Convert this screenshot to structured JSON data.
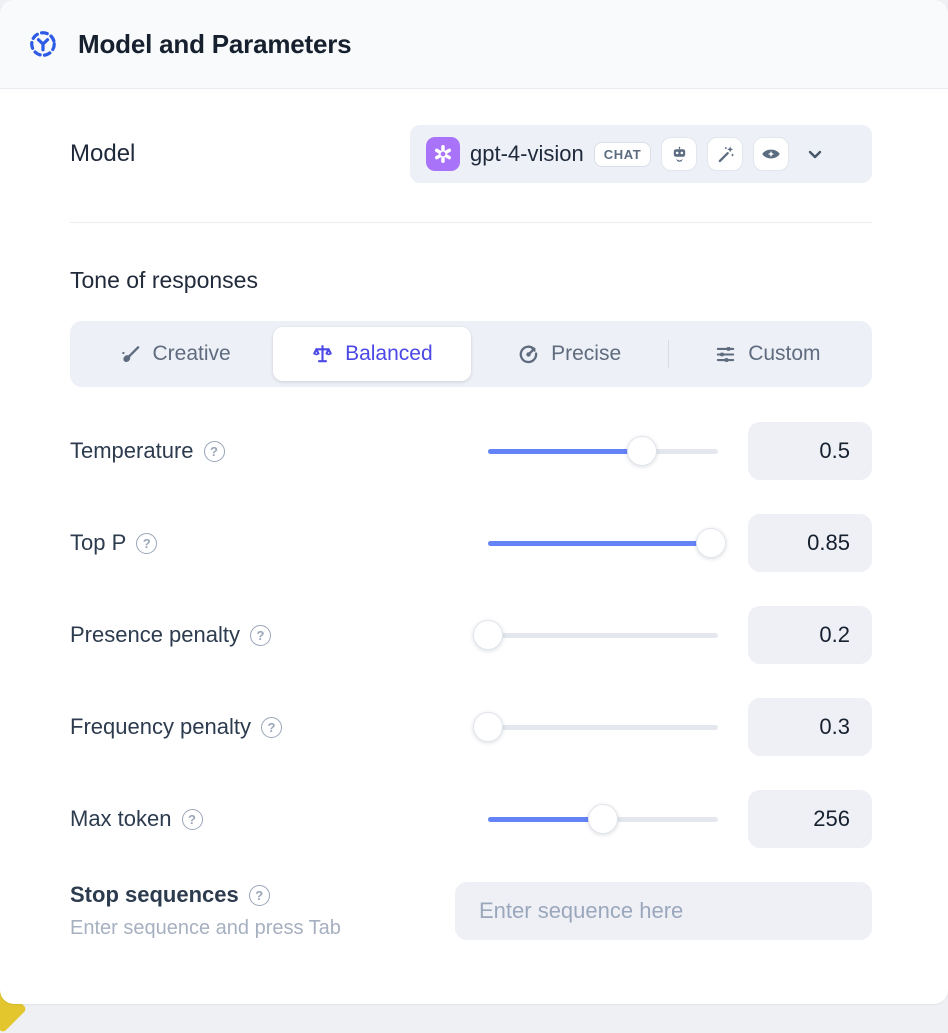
{
  "header": {
    "title": "Model and Parameters",
    "icon": "model-hub-icon",
    "icon_color": "#2e5be6"
  },
  "model": {
    "label": "Model",
    "selected": {
      "name": "gpt-4-vision",
      "provider_icon": "openai-logo",
      "provider_color": "#a873f8",
      "type_badge": "CHAT",
      "capability_icons": [
        "robot-icon",
        "magic-wand-icon",
        "vision-eye-icon"
      ]
    }
  },
  "tone": {
    "heading": "Tone of responses",
    "options": [
      {
        "label": "Creative",
        "icon": "brush-icon",
        "selected": false
      },
      {
        "label": "Balanced",
        "icon": "scale-icon",
        "selected": true
      },
      {
        "label": "Precise",
        "icon": "target-icon",
        "selected": false
      },
      {
        "label": "Custom",
        "icon": "sliders-icon",
        "selected": false
      }
    ],
    "selected_color": "#4b48e5"
  },
  "parameters": [
    {
      "label": "Temperature",
      "value": "0.5",
      "fill_pct": 67
    },
    {
      "label": "Top P",
      "value": "0.85",
      "fill_pct": 97
    },
    {
      "label": "Presence penalty",
      "value": "0.2",
      "fill_pct": 0
    },
    {
      "label": "Frequency penalty",
      "value": "0.3",
      "fill_pct": 0
    },
    {
      "label": "Max token",
      "value": "256",
      "fill_pct": 50
    }
  ],
  "stop_sequences": {
    "label": "Stop sequences",
    "hint": "Enter sequence and press Tab",
    "placeholder": "Enter sequence here"
  },
  "colors": {
    "slider_blue": "#6483f7",
    "accent_blue": "#2e5be6",
    "openai_purple": "#a873f8",
    "bottom_accent_yellow": "#e3c52e"
  }
}
